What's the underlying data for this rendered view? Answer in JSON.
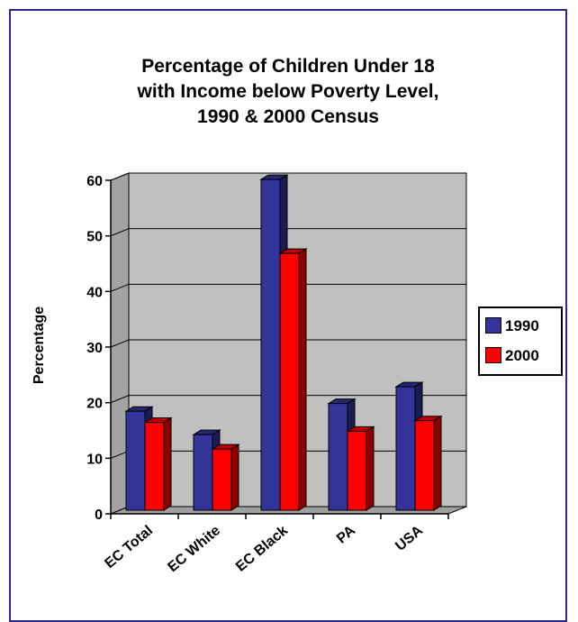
{
  "chart_data": {
    "type": "bar",
    "title_lines": [
      "Percentage of Children Under 18",
      "with Income below Poverty Level,",
      "1990 & 2000 Census"
    ],
    "xlabel": "",
    "ylabel": "Percentage",
    "ylim": [
      0,
      60
    ],
    "yticks": [
      "0",
      "10",
      "20",
      "30",
      "40",
      "50",
      "60"
    ],
    "categories": [
      "EC Total",
      "EC White",
      "EC Black",
      "PA",
      "USA"
    ],
    "series": [
      {
        "name": "1990",
        "color": "#333399",
        "values": [
          17.8,
          13.6,
          59.5,
          19.2,
          22.2
        ]
      },
      {
        "name": "2000",
        "color": "#ff0000",
        "values": [
          15.8,
          11.0,
          46.2,
          14.2,
          16.1
        ]
      }
    ],
    "legend_position": "right",
    "grid": true,
    "plot_background": "#c0c0c0"
  }
}
